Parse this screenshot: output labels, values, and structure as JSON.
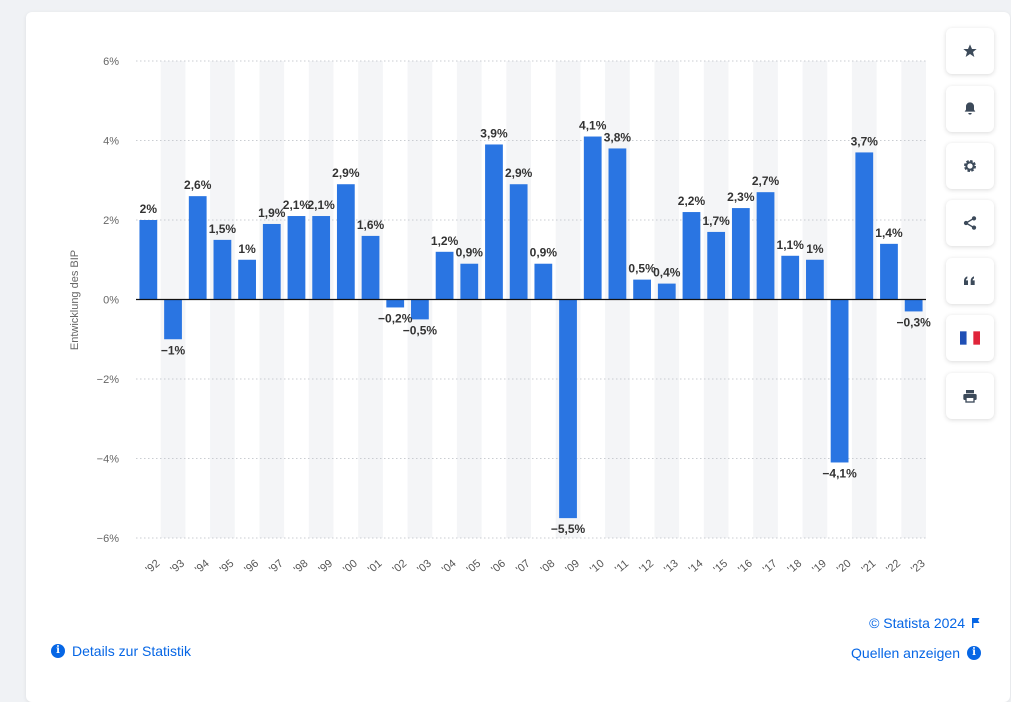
{
  "chart_data": {
    "type": "bar",
    "categories": [
      "'92",
      "'93",
      "'94",
      "'95",
      "'96",
      "'97",
      "'98",
      "'99",
      "'00",
      "'01",
      "'02",
      "'03",
      "'04",
      "'05",
      "'06",
      "'07",
      "'08",
      "'09",
      "'10",
      "'11",
      "'12",
      "'13",
      "'14",
      "'15",
      "'16",
      "'17",
      "'18",
      "'19",
      "'20",
      "'21",
      "'22",
      "'23"
    ],
    "values": [
      2,
      -1,
      2.6,
      1.5,
      1,
      1.9,
      2.1,
      2.1,
      2.9,
      1.6,
      -0.2,
      -0.5,
      1.2,
      0.9,
      3.9,
      2.9,
      0.9,
      -5.5,
      4.1,
      3.8,
      0.5,
      0.4,
      2.2,
      1.7,
      2.3,
      2.7,
      1.1,
      1,
      -4.1,
      3.7,
      1.4,
      -0.3
    ],
    "data_labels": [
      "2%",
      "−1%",
      "2,6%",
      "1,5%",
      "1%",
      "1,9%",
      "2,1%",
      "2,1%",
      "2,9%",
      "1,6%",
      "−0,2%",
      "−0,5%",
      "1,2%",
      "0,9%",
      "3,9%",
      "2,9%",
      "0,9%",
      "−5,5%",
      "4,1%",
      "3,8%",
      "0,5%",
      "0,4%",
      "2,2%",
      "1,7%",
      "2,3%",
      "2,7%",
      "1,1%",
      "1%",
      "−4,1%",
      "3,7%",
      "1,4%",
      "−0,3%"
    ],
    "ylabel": "Entwicklung des BIP",
    "xlabel": "",
    "ylim": [
      -6,
      6
    ],
    "yticks": [
      6,
      4,
      2,
      0,
      -2,
      -4,
      -6
    ],
    "ytick_labels": [
      "6%",
      "4%",
      "2%",
      "0%",
      "−2%",
      "−4%",
      "−6%"
    ],
    "grid": true,
    "bar_color": "#2a75e2"
  },
  "sidebar": {
    "buttons": [
      {
        "name": "favorite-button",
        "icon": "star-icon"
      },
      {
        "name": "notification-button",
        "icon": "bell-icon"
      },
      {
        "name": "settings-button",
        "icon": "gear-icon"
      },
      {
        "name": "share-button",
        "icon": "share-icon"
      },
      {
        "name": "cite-button",
        "icon": "quote-icon"
      },
      {
        "name": "language-button",
        "icon": "french-flag-icon"
      },
      {
        "name": "print-button",
        "icon": "printer-icon"
      }
    ]
  },
  "footer": {
    "details_label": "Details zur Statistik",
    "copyright": "© Statista 2024",
    "sources_label": "Quellen anzeigen"
  }
}
